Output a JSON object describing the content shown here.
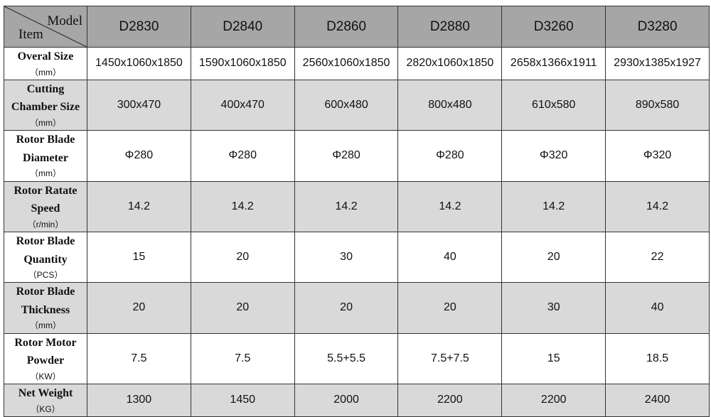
{
  "corner": {
    "model_label": "Model",
    "item_label": "Item"
  },
  "models": [
    "D2830",
    "D2840",
    "D2860",
    "D2880",
    "D3260",
    "D3280"
  ],
  "rows": [
    {
      "label": "Overal Size",
      "unit": "（mm）",
      "values": [
        "1450x1060x1850",
        "1590x1060x1850",
        "2560x1060x1850",
        "2820x1060x1850",
        "2658x1366x1911",
        "2930x1385x1927"
      ]
    },
    {
      "label": "Cutting Chamber Size",
      "unit": "（mm）",
      "values": [
        "300x470",
        "400x470",
        "600x480",
        "800x480",
        "610x580",
        "890x580"
      ]
    },
    {
      "label": "Rotor Blade Diameter",
      "unit": "（mm）",
      "values": [
        "Φ280",
        "Φ280",
        "Φ280",
        "Φ280",
        "Φ320",
        "Φ320"
      ]
    },
    {
      "label": "Rotor Ratate Speed",
      "unit": "（r/min）",
      "values": [
        "14.2",
        "14.2",
        "14.2",
        "14.2",
        "14.2",
        "14.2"
      ]
    },
    {
      "label": "Rotor Blade Quantity",
      "unit": "（PCS）",
      "values": [
        "15",
        "20",
        "30",
        "40",
        "20",
        "22"
      ]
    },
    {
      "label": "Rotor Blade Thickness",
      "unit": "（mm）",
      "values": [
        "20",
        "20",
        "20",
        "20",
        "30",
        "40"
      ]
    },
    {
      "label": "Rotor Motor Powder",
      "unit": "（KW）",
      "values": [
        "7.5",
        "7.5",
        "5.5+5.5",
        "7.5+7.5",
        "15",
        "18.5"
      ]
    },
    {
      "label": "Net Weight",
      "unit": "（KG）",
      "values": [
        "1300",
        "1450",
        "2000",
        "2200",
        "2200",
        "2400"
      ]
    }
  ],
  "colors": {
    "header_bg": "#a6a6a6",
    "row_alt_bg": "#d9d9d9",
    "row_bg": "#ffffff",
    "border": "#333333"
  }
}
